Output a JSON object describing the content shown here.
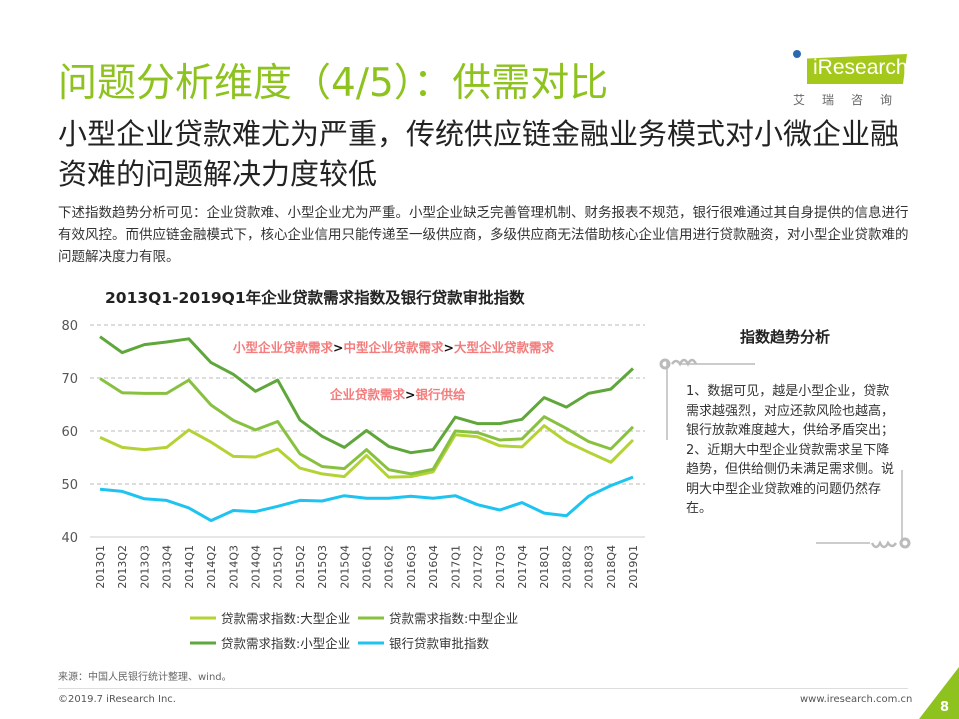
{
  "header": {
    "title": "问题分析维度（4/5）：供需对比",
    "subtitle": "小型企业贷款难尤为严重，传统供应链金融业务模式对小微企业融资难的问题解决力度较低",
    "description": "下述指数趋势分析可见：企业贷款难、小型企业尤为严重。小型企业缺乏完善管理机制、财务报表不规范，银行很难通过其自身提供的信息进行有效风控。而供应链金融模式下，核心企业信用只能传递至一级供应商，多级供应商无法借助核心企业信用进行贷款融资，对小型企业贷款难的问题解决度力有限。"
  },
  "logo": {
    "text": "iResearch",
    "cn": "艾瑞咨询"
  },
  "chart_data": {
    "type": "line",
    "title": "2013Q1-2019Q1年企业贷款需求指数及银行贷款审批指数",
    "categories": [
      "2013Q1",
      "2013Q2",
      "2013Q3",
      "2013Q4",
      "2014Q1",
      "2014Q2",
      "2014Q3",
      "2014Q4",
      "2015Q1",
      "2015Q2",
      "2015Q3",
      "2015Q4",
      "2016Q1",
      "2016Q2",
      "2016Q3",
      "2016Q4",
      "2017Q1",
      "2017Q2",
      "2017Q3",
      "2017Q4",
      "2018Q1",
      "2018Q2",
      "2018Q3",
      "2018Q4",
      "2019Q1"
    ],
    "ylim": [
      40,
      80
    ],
    "yticks": [
      40,
      50,
      60,
      70,
      80
    ],
    "grid": true,
    "legend_position": "bottom",
    "series": [
      {
        "name": "贷款需求指数:大型企业",
        "color": "#b3d334",
        "values": [
          58.8,
          56.9,
          56.5,
          56.9,
          60.2,
          57.9,
          55.2,
          55.1,
          56.6,
          53.0,
          51.9,
          51.4,
          55.4,
          51.3,
          51.4,
          52.3,
          59.3,
          58.9,
          57.2,
          57.0,
          61.0,
          58.0,
          56.0,
          54.1,
          58.3
        ]
      },
      {
        "name": "贷款需求指数:中型企业",
        "color": "#88c140",
        "values": [
          69.9,
          67.2,
          67.1,
          67.1,
          69.6,
          64.9,
          62.0,
          60.2,
          61.8,
          55.7,
          53.3,
          52.9,
          56.5,
          52.7,
          51.9,
          52.8,
          60.0,
          59.7,
          58.3,
          58.5,
          62.7,
          60.5,
          58.0,
          56.6,
          60.8
        ]
      },
      {
        "name": "贷款需求指数:小型企业",
        "color": "#5fa73a",
        "values": [
          77.8,
          74.8,
          76.3,
          76.8,
          77.4,
          72.9,
          70.7,
          67.5,
          69.6,
          62.1,
          59.0,
          56.9,
          60.1,
          57.1,
          55.9,
          56.5,
          62.6,
          61.4,
          61.4,
          62.2,
          66.3,
          64.5,
          67.1,
          67.9,
          71.8
        ]
      },
      {
        "name": "银行贷款审批指数",
        "color": "#1ec3f0",
        "values": [
          49.0,
          48.6,
          47.2,
          46.9,
          45.5,
          43.1,
          45.0,
          44.8,
          45.8,
          46.9,
          46.8,
          47.8,
          47.3,
          47.3,
          47.7,
          47.3,
          47.8,
          46.1,
          45.1,
          46.5,
          44.5,
          44.0,
          47.7,
          49.7,
          51.3
        ]
      }
    ],
    "annotations": [
      {
        "parts": [
          "小型企业贷款需求",
          ">",
          "中型企业贷款需求",
          ">",
          "大型企业贷款需求"
        ]
      },
      {
        "parts": [
          "企业贷款需求",
          ">",
          "银行供给"
        ]
      }
    ],
    "annotation_color": "#f47c7c"
  },
  "panel": {
    "title": "指数趋势分析",
    "text": "1、数据可见，越是小型企业，贷款需求越强烈，对应还款风险也越高，银行放款难度越大，供给矛盾突出；\n2、近期大中型企业贷款需求呈下降趋势，但供给侧仍未满足需求侧。说明大中型企业贷款难的问题仍然存在。"
  },
  "footer": {
    "source": "来源：中国人民银行统计整理、wind。",
    "copyright": "©2019.7 iResearch Inc.",
    "website": "www.iresearch.com.cn",
    "page": "8"
  }
}
